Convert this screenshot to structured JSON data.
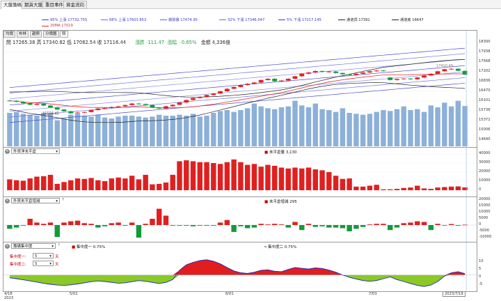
{
  "top_tabs": [
    {
      "label": "大盤籌碼",
      "active": true
    },
    {
      "label": "期貨大盤",
      "active": false
    },
    {
      "label": "重目事件",
      "active": false
    },
    {
      "label": "資金流向",
      "active": false
    }
  ],
  "legend": {
    "row1": [
      {
        "text": "95% 上漲 17732.755",
        "color": "#3a3ac0"
      },
      {
        "text": "68% 上漲 17603.853",
        "color": "#6a6ad8"
      },
      {
        "text": "趨勢價 17474.95",
        "color": "#5a5ae0"
      },
      {
        "text": "32% 下漲 17346.047",
        "color": "#6a6ad8"
      },
      {
        "text": "5% 下漲 17217.145",
        "color": "#3a3ac0"
      },
      {
        "text": "通道頂 17391",
        "color": "#222222"
      },
      {
        "text": "通道底 16647",
        "color": "#222222"
      }
    ],
    "row2": [
      {
        "text": "20MA 17019",
        "color": "#d03030"
      }
    ]
  },
  "price_tabs": [
    {
      "label": "均價",
      "active": false
    },
    {
      "label": "布林",
      "active": false
    },
    {
      "label": "趨勢",
      "active": false
    },
    {
      "label": "分價圖",
      "active": false
    },
    {
      "label": "殼",
      "active": true
    }
  ],
  "ohlc": {
    "open_label": "開",
    "open": "17265.38",
    "high_label": "高",
    "high": "17340.82",
    "low_label": "低",
    "low": "17082.54",
    "close_label": "收",
    "close": "17116.44",
    "change_label": "漲跌",
    "change": "-111.47",
    "pct_label": "漲幅",
    "pct": "-0.65%",
    "amount_label": "金額",
    "amount": "4,336億"
  },
  "price_axis": [
    "18300",
    "17938",
    "17568",
    "17202",
    "16836",
    "16470",
    "16101",
    "15736",
    "15372",
    "15006",
    "14640"
  ],
  "price_marker": {
    "label": "17410.49"
  },
  "low_marker": {
    "label": "15556.45"
  },
  "panel2": {
    "select": "外資淨未平倉",
    "legend": "未平倉量 3,130",
    "axis": [
      "40000",
      "30000",
      "20000",
      "10000",
      "0"
    ]
  },
  "panel3": {
    "select": "外資未平倉增減",
    "legend": "未平倉增減 295",
    "axis": [
      "20000",
      "15000",
      "10000",
      "5000",
      "0",
      "-5000",
      "-10000"
    ]
  },
  "panel4": {
    "select": "籌碼集中度",
    "legend1": "集中度一 0.75%",
    "legend2": "集中度二 0.75%",
    "param1_label": "集中度一:",
    "param1_value": "5",
    "param1_unit": "天",
    "param2_label": "集中度二:",
    "param2_value": "5",
    "param2_unit": "天",
    "axis": [
      "10",
      "5",
      "0",
      "-5"
    ]
  },
  "x_axis": {
    "labels": [
      "4/18",
      "5/02",
      "6/01",
      "7/03"
    ],
    "year": "2023",
    "cursor_date": "2023/7/19"
  },
  "colors": {
    "up": "#e02020",
    "down": "#129a3a",
    "volume": "#8cb0d8",
    "area_pos": "#e21d1d",
    "area_neg": "#8ac926",
    "band": "#4a4ad0",
    "ma": "#e03030",
    "channel": "#222222"
  },
  "chart_data": [
    {
      "type": "candlestick",
      "title": "",
      "ylim": [
        14500,
        18400
      ],
      "closes": [
        16070,
        16030,
        15970,
        15910,
        15950,
        15880,
        15800,
        15720,
        15650,
        15570,
        15600,
        15620,
        15700,
        15760,
        15780,
        15820,
        15850,
        15900,
        15960,
        15940,
        15900,
        15800,
        15760,
        15850,
        15910,
        16000,
        16100,
        16180,
        16230,
        16300,
        16360,
        16450,
        16550,
        16620,
        16700,
        16750,
        16800,
        16900,
        16950,
        16850,
        16880,
        16950,
        17050,
        17150,
        17200,
        17260,
        17230,
        17240,
        17180,
        17130,
        17100,
        17150,
        17200,
        17250,
        17280,
        17260,
        16900,
        16940,
        16960,
        16930,
        17000,
        17080,
        17150,
        17250,
        17330,
        17350,
        17270,
        17116
      ],
      "opens": [
        16080,
        16070,
        16030,
        15970,
        15910,
        15950,
        15880,
        15800,
        15720,
        15650,
        15570,
        15600,
        15620,
        15700,
        15760,
        15780,
        15820,
        15850,
        15900,
        15960,
        15940,
        15900,
        15800,
        15760,
        15850,
        15910,
        16000,
        16100,
        16180,
        16230,
        16300,
        16360,
        16450,
        16550,
        16620,
        16700,
        16750,
        16800,
        16900,
        16950,
        16850,
        16880,
        16950,
        17050,
        17150,
        17200,
        17260,
        17230,
        17240,
        17180,
        17130,
        17100,
        17150,
        17200,
        17250,
        17280,
        17000,
        16900,
        16940,
        16960,
        16930,
        17000,
        17080,
        17150,
        17250,
        17330,
        17350,
        17265
      ]
    },
    {
      "type": "bar",
      "title": "成交量",
      "values": [
        3600,
        3700,
        3500,
        3400,
        3300,
        3600,
        3500,
        2800,
        3000,
        3400,
        3500,
        3300,
        3200,
        3400,
        3100,
        3000,
        3200,
        3300,
        3300,
        3200,
        3100,
        3200,
        3400,
        3300,
        3300,
        3400,
        3300,
        3500,
        3200,
        3300,
        3600,
        3800,
        3900,
        3700,
        3900,
        4100,
        4600,
        4300,
        4100,
        4000,
        4200,
        4300,
        4900,
        4400,
        4200,
        4600,
        4000,
        3900,
        3700,
        4100,
        3600,
        3500,
        3400,
        3500,
        3700,
        3900,
        3800,
        4000,
        4300,
        3900,
        4000,
        3700,
        4400,
        4200,
        4700,
        4300,
        4900,
        4336
      ]
    },
    {
      "type": "bar",
      "title": "未平倉量",
      "values": [
        12000,
        11000,
        10500,
        13000,
        15000,
        15500,
        17000,
        7000,
        9000,
        11000,
        13000,
        12500,
        13500,
        11000,
        10000,
        13000,
        14000,
        13000,
        16000,
        12000,
        17000,
        6500,
        7000,
        8500,
        17000,
        32000,
        33000,
        32000,
        31000,
        31000,
        30000,
        29000,
        31000,
        34000,
        31000,
        28000,
        29000,
        26000,
        28000,
        27000,
        25000,
        24000,
        25000,
        24000,
        25000,
        23000,
        22000,
        20000,
        16000,
        12500,
        13000,
        4000,
        4000,
        5000,
        6000,
        1000,
        1000,
        1500,
        2500,
        3000,
        5000,
        2000,
        1500,
        3000,
        3500,
        4000,
        4200,
        3130
      ]
    },
    {
      "type": "bar",
      "title": "未平倉增減",
      "values": [
        -3000,
        -2000,
        0,
        5000,
        2000,
        1000,
        2000,
        -9500,
        2000,
        3000,
        3500,
        1500,
        1000,
        -2000,
        -1000,
        1500,
        2000,
        -500,
        2000,
        -10000,
        1000,
        5000,
        13000,
        7500,
        -500,
        -500,
        -500,
        -1000,
        -500,
        -500,
        -500,
        2000,
        4000,
        -5500,
        -1000,
        -2500,
        -2000,
        1000,
        500,
        1000,
        500,
        -2000,
        2500,
        -4000,
        1000,
        -1500,
        -1000,
        -2000,
        -2000,
        -2500,
        -5000,
        -3000,
        -1500,
        500,
        1000,
        1000,
        -4000,
        -2000,
        1500,
        2000,
        3000,
        2500,
        -4000,
        1000,
        -200,
        800,
        -500,
        295
      ]
    },
    {
      "type": "area",
      "title": "籌碼集中度",
      "values": [
        -1.5,
        -2.0,
        -2.6,
        -3.2,
        -3.8,
        -4.5,
        -5.0,
        -5.4,
        -5.6,
        -5.3,
        -4.8,
        -4.2,
        -3.6,
        -3.2,
        -3.5,
        -4.0,
        -4.4,
        -4.2,
        -3.6,
        -3.0,
        -3.4,
        -4.0,
        -4.6,
        -4.0,
        -2.5,
        2.5,
        5.5,
        6.8,
        7.8,
        8.2,
        7.4,
        6.0,
        4.0,
        2.2,
        1.2,
        0.8,
        1.5,
        2.5,
        2.8,
        2.0,
        1.8,
        3.0,
        4.0,
        3.6,
        3.2,
        3.8,
        3.5,
        2.6,
        1.5,
        0.0,
        -1.2,
        -2.2,
        -3.0,
        -3.4,
        -3.0,
        -2.0,
        -1.0,
        -2.5,
        -3.5,
        -4.6,
        -5.6,
        -6.2,
        -5.4,
        -3.5,
        -0.6,
        1.2,
        1.8,
        0.75
      ],
      "ylim": [
        -8,
        10
      ]
    }
  ]
}
